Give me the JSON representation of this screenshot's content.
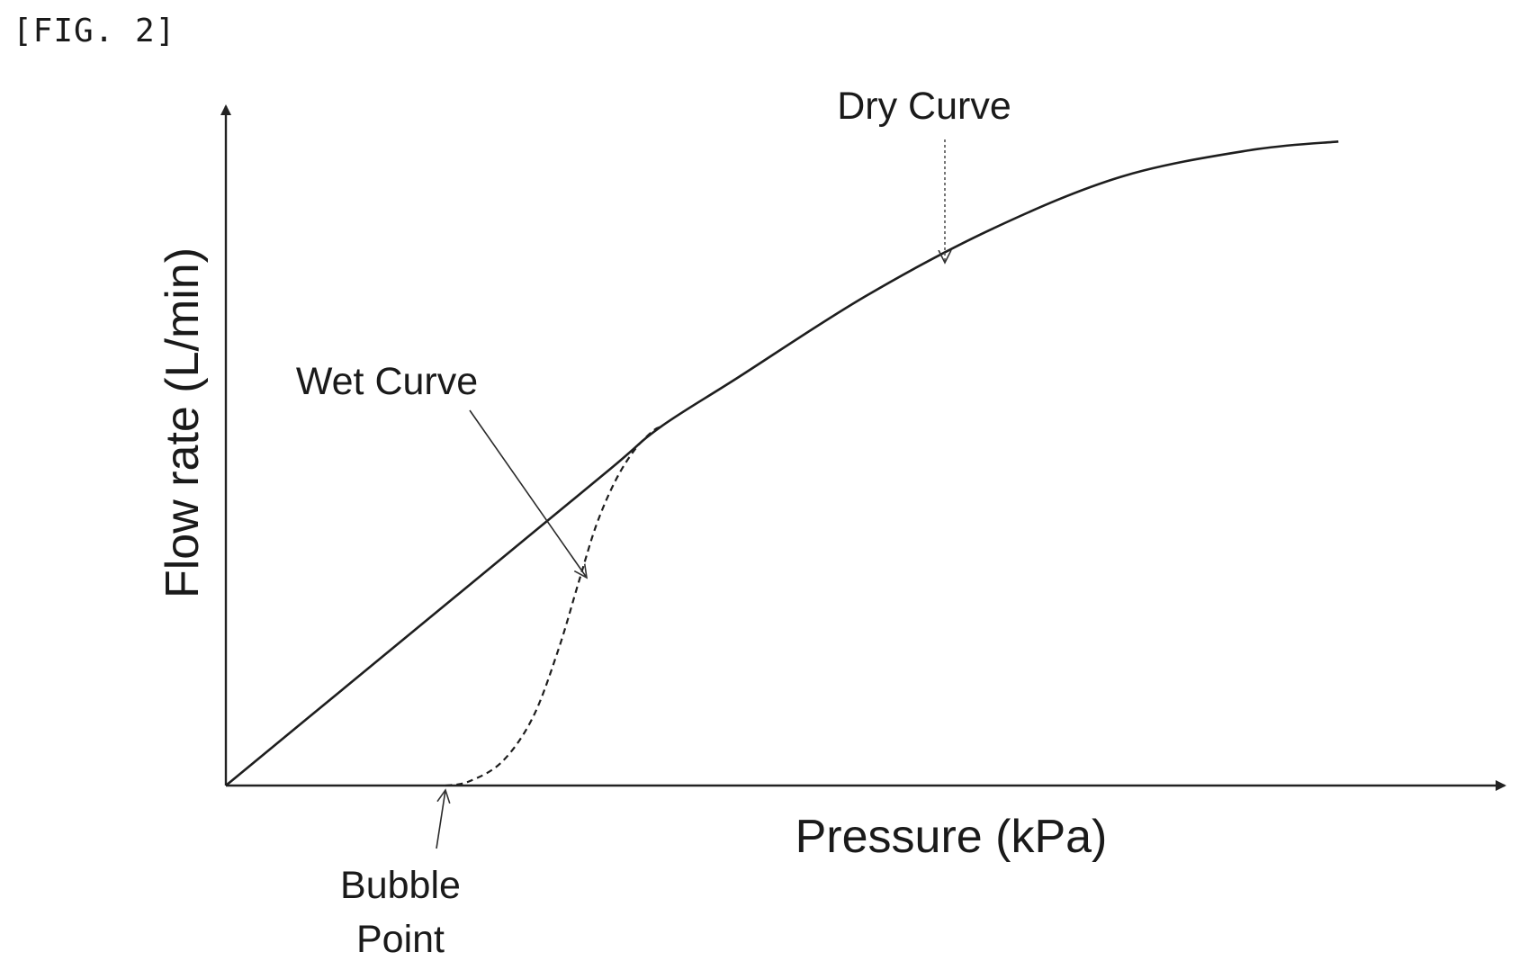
{
  "figure_label": "[FIG. 2]",
  "chart_data": {
    "type": "line",
    "xlabel": "Pressure (kPa)",
    "ylabel": "Flow rate (L/min)",
    "xlim": [
      0,
      100
    ],
    "ylim": [
      0,
      100
    ],
    "grid": false,
    "ticks": false,
    "series": [
      {
        "name": "Dry Curve",
        "style": "solid",
        "x": [
          0,
          10,
          20,
          30,
          34,
          40,
          50,
          60,
          70,
          80,
          87
        ],
        "y": [
          0,
          15.5,
          31,
          46.5,
          52.8,
          60,
          72,
          82,
          89.6,
          93.5,
          94.8
        ]
      },
      {
        "name": "Wet Curve",
        "style": "dashed",
        "x": [
          17.2,
          19,
          21.6,
          24,
          26,
          27.6,
          29,
          30.5,
          32,
          33.4,
          34
        ],
        "y": [
          0,
          0.6,
          3.5,
          10,
          20,
          30,
          38.5,
          45,
          49.5,
          52.2,
          52.8
        ]
      }
    ],
    "annotations": [
      {
        "text": "Dry Curve",
        "points_to": "dry curve"
      },
      {
        "text": "Wet Curve",
        "points_to": "wet curve"
      },
      {
        "text": "Bubble",
        "text2": "Point",
        "points_to": "wet curve departs x-axis"
      }
    ]
  }
}
